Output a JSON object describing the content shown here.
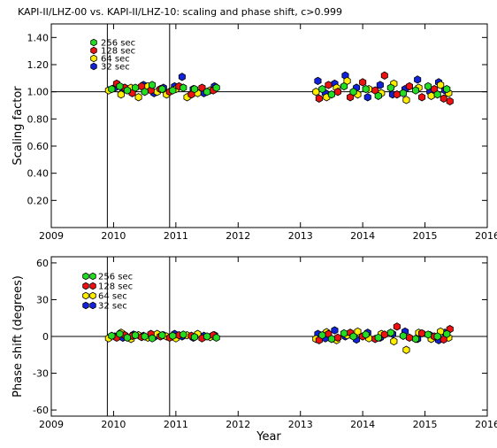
{
  "title": "KAPI-II/LHZ-00 vs. KAPI-II/LHZ-10: scaling and phase shift, c>0.999",
  "xlabel": "Year",
  "colors": {
    "256 sec": "#22dd22",
    "128 sec": "#ee1111",
    "64 sec": "#ffee00",
    "32 sec": "#1122dd"
  },
  "chart_data": [
    {
      "type": "scatter",
      "panel": "scaling",
      "ylabel": "Scaling factor",
      "xlim": [
        2009,
        2016
      ],
      "ylim": [
        0.0,
        1.5
      ],
      "x_ticks": [
        "2009",
        "2010",
        "2011",
        "2012",
        "2013",
        "2014",
        "2015",
        "2016"
      ],
      "y_ticks": [
        "0.20",
        "0.40",
        "0.60",
        "0.80",
        "1.00",
        "1.20",
        "1.40"
      ],
      "y_tick_values": [
        0.2,
        0.4,
        0.6,
        0.8,
        1.0,
        1.2,
        1.4
      ],
      "reference_y": 1.0,
      "vertical_lines_x": [
        2009.9,
        2010.9
      ],
      "legend": [
        "256 sec",
        "128 sec",
        "64 sec",
        "32 sec"
      ],
      "series": [
        {
          "name": "256 sec",
          "x": [
            2009.97,
            2010.1,
            2010.22,
            2010.35,
            2010.5,
            2010.62,
            2010.78,
            2010.95,
            2011.12,
            2011.3,
            2011.5,
            2011.65,
            2013.35,
            2013.5,
            2013.7,
            2013.85,
            2014.05,
            2014.25,
            2014.45,
            2014.65,
            2014.85,
            2015.05,
            2015.2,
            2015.35
          ],
          "y": [
            1.02,
            1.04,
            1.01,
            1.03,
            1.0,
            1.05,
            1.02,
            1.01,
            1.03,
            1.02,
            1.0,
            1.03,
            1.02,
            0.98,
            1.04,
            1.0,
            1.02,
            0.97,
            1.03,
            0.99,
            1.01,
            1.04,
            0.98,
            1.02
          ]
        },
        {
          "name": "128 sec",
          "x": [
            2010.05,
            2010.18,
            2010.3,
            2010.45,
            2010.6,
            2010.75,
            2010.9,
            2011.05,
            2011.25,
            2011.42,
            2011.6,
            2013.3,
            2013.45,
            2013.6,
            2013.8,
            2014.0,
            2014.2,
            2014.35,
            2014.55,
            2014.75,
            2014.95,
            2015.15,
            2015.3,
            2015.4
          ],
          "y": [
            1.06,
            1.03,
            0.99,
            1.04,
            1.01,
            1.02,
            1.0,
            1.04,
            0.98,
            1.03,
            1.01,
            0.95,
            1.05,
            1.0,
            0.96,
            1.07,
            1.01,
            1.12,
            0.98,
            1.04,
            0.96,
            1.02,
            0.95,
            0.93
          ]
        },
        {
          "name": "64 sec",
          "x": [
            2009.92,
            2010.12,
            2010.28,
            2010.4,
            2010.55,
            2010.7,
            2010.85,
            2011.0,
            2011.18,
            2011.35,
            2011.55,
            2013.25,
            2013.42,
            2013.58,
            2013.75,
            2013.92,
            2014.1,
            2014.3,
            2014.5,
            2014.7,
            2014.9,
            2015.1,
            2015.25,
            2015.38
          ],
          "y": [
            1.01,
            0.98,
            1.03,
            0.96,
            1.04,
            1.0,
            0.98,
            1.02,
            0.96,
            0.99,
            1.01,
            1.0,
            0.96,
            1.03,
            1.08,
            0.98,
            1.02,
            0.99,
            1.06,
            0.94,
            1.03,
            0.97,
            1.05,
            0.99
          ]
        },
        {
          "name": "32 sec",
          "x": [
            2010.02,
            2010.15,
            2010.32,
            2010.48,
            2010.65,
            2010.8,
            2010.98,
            2011.1,
            2011.28,
            2011.45,
            2011.62,
            2013.28,
            2013.4,
            2013.55,
            2013.72,
            2013.9,
            2014.08,
            2014.28,
            2014.48,
            2014.68,
            2014.88,
            2015.08,
            2015.22,
            2015.32
          ],
          "y": [
            1.03,
            1.01,
            1.02,
            1.05,
            0.99,
            1.03,
            1.04,
            1.11,
            1.02,
            0.99,
            1.04,
            1.08,
            0.99,
            1.06,
            1.12,
            1.03,
            0.96,
            1.05,
            0.98,
            1.02,
            1.09,
            1.0,
            1.07,
            1.01
          ]
        }
      ]
    },
    {
      "type": "scatter",
      "panel": "phase",
      "ylabel": "Phase shift (degrees)",
      "xlim": [
        2009,
        2016
      ],
      "ylim": [
        -65,
        65
      ],
      "x_ticks": [
        "2009",
        "2010",
        "2011",
        "2012",
        "2013",
        "2014",
        "2015",
        "2016"
      ],
      "y_ticks": [
        "-60",
        "-30",
        "0",
        "30",
        "60"
      ],
      "y_tick_values": [
        -60,
        -30,
        0,
        30,
        60
      ],
      "reference_y": 0,
      "vertical_lines_x": [
        2009.9,
        2010.9
      ],
      "legend": [
        "256 sec",
        "128 sec",
        "64 sec",
        "32 sec"
      ],
      "series": [
        {
          "name": "256 sec",
          "x": [
            2009.97,
            2010.1,
            2010.22,
            2010.35,
            2010.5,
            2010.62,
            2010.78,
            2010.95,
            2011.12,
            2011.3,
            2011.5,
            2011.65,
            2013.35,
            2013.5,
            2013.7,
            2013.85,
            2014.05,
            2014.25,
            2014.45,
            2014.65,
            2014.85,
            2015.05,
            2015.2,
            2015.35
          ],
          "y": [
            0.5,
            2,
            -1,
            1,
            0,
            -1.5,
            1,
            0.5,
            1.5,
            -0.5,
            0,
            -1,
            1,
            -2,
            2.5,
            0,
            1.5,
            -1,
            3,
            0.5,
            -2,
            1.5,
            0,
            2
          ]
        },
        {
          "name": "128 sec",
          "x": [
            2010.05,
            2010.18,
            2010.3,
            2010.45,
            2010.6,
            2010.75,
            2010.9,
            2011.05,
            2011.25,
            2011.42,
            2011.6,
            2013.3,
            2013.45,
            2013.6,
            2013.8,
            2014.0,
            2014.2,
            2014.35,
            2014.55,
            2014.75,
            2014.95,
            2015.15,
            2015.3,
            2015.4
          ],
          "y": [
            -1,
            1,
            0.5,
            -0.5,
            2,
            0,
            -1,
            1,
            0.5,
            -1.5,
            1,
            -3,
            2,
            -1,
            3,
            0,
            -2,
            1.5,
            8,
            -1,
            2.5,
            0,
            -2.5,
            6
          ]
        },
        {
          "name": "64 sec",
          "x": [
            2009.92,
            2010.12,
            2010.28,
            2010.4,
            2010.55,
            2010.7,
            2010.85,
            2011.0,
            2011.18,
            2011.35,
            2011.55,
            2013.25,
            2013.42,
            2013.58,
            2013.75,
            2013.92,
            2014.1,
            2014.3,
            2014.5,
            2014.7,
            2014.9,
            2015.1,
            2015.25,
            2015.38
          ],
          "y": [
            -1.5,
            3,
            -2,
            1,
            -1,
            2,
            0,
            -1.5,
            1,
            2,
            -0.5,
            -2,
            3.5,
            -3,
            1,
            4,
            -1.5,
            2,
            -4,
            -11,
            3,
            -2,
            4,
            -1
          ]
        },
        {
          "name": "32 sec",
          "x": [
            2010.02,
            2010.15,
            2010.32,
            2010.48,
            2010.65,
            2010.8,
            2010.98,
            2011.1,
            2011.28,
            2011.45,
            2011.62,
            2013.28,
            2013.4,
            2013.55,
            2013.72,
            2013.9,
            2014.08,
            2014.28,
            2014.48,
            2014.68,
            2014.88,
            2015.08,
            2015.22,
            2015.32
          ],
          "y": [
            0,
            -1,
            1.5,
            0.5,
            -0.5,
            1,
            2,
            0,
            -1,
            0.5,
            1,
            2,
            -1.5,
            5,
            0,
            -2.5,
            3,
            -1,
            2,
            4,
            -2,
            1,
            -3,
            3
          ]
        }
      ]
    }
  ]
}
